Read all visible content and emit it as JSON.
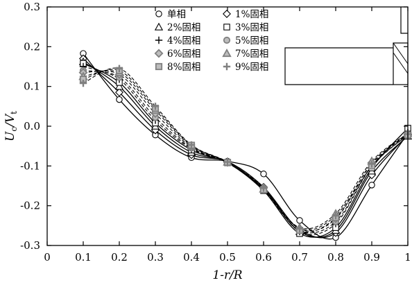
{
  "chart_data": {
    "type": "line",
    "title": "",
    "xlabel": "1-r/R",
    "ylabel": "Uc/Vt",
    "xlim": [
      0,
      1
    ],
    "ylim": [
      -0.3,
      0.3
    ],
    "xticks": [
      "0",
      "0.1",
      "0.2",
      "0.3",
      "0.4",
      "0.5",
      "0.6",
      "0.7",
      "0.8",
      "0.9",
      "1"
    ],
    "yticks": [
      "-0.3",
      "-0.2",
      "-0.1",
      "0.0",
      "0.1",
      "0.2",
      "0.3"
    ],
    "grid": false,
    "legend_position": "top-center",
    "inset": "vessel wall schematic with baffle (top-right)",
    "x": [
      0.1,
      0.2,
      0.3,
      0.4,
      0.5,
      0.6,
      0.7,
      0.8,
      0.9,
      1.0
    ],
    "series": [
      {
        "name": "单相",
        "marker": "circle",
        "line": "solid",
        "values": [
          0.183,
          0.067,
          -0.022,
          -0.079,
          -0.088,
          -0.12,
          -0.237,
          -0.28,
          -0.148,
          -0.018
        ]
      },
      {
        "name": "1%固相",
        "marker": "diamond",
        "line": "solid",
        "values": [
          0.17,
          0.085,
          -0.01,
          -0.072,
          -0.089,
          -0.153,
          -0.26,
          -0.268,
          -0.123,
          -0.022
        ]
      },
      {
        "name": "2%固相",
        "marker": "triangle",
        "line": "solid",
        "values": [
          0.162,
          0.1,
          0.0,
          -0.066,
          -0.09,
          -0.158,
          -0.265,
          -0.262,
          -0.113,
          -0.025
        ]
      },
      {
        "name": "3%固相",
        "marker": "square",
        "line": "solid",
        "values": [
          0.158,
          0.11,
          0.008,
          -0.06,
          -0.092,
          -0.162,
          -0.27,
          -0.255,
          -0.105,
          -0.005
        ]
      },
      {
        "name": "4%固相",
        "marker": "plus",
        "line": "dashed",
        "values": [
          0.15,
          0.118,
          0.015,
          -0.057,
          -0.091,
          -0.155,
          -0.265,
          -0.245,
          -0.1,
          -0.016
        ]
      },
      {
        "name": "5%固相",
        "marker": "circle-gray",
        "line": "dashed",
        "values": [
          0.14,
          0.123,
          0.022,
          -0.055,
          -0.09,
          -0.16,
          -0.262,
          -0.24,
          -0.1,
          -0.022
        ]
      },
      {
        "name": "6%固相",
        "marker": "diamond-gray",
        "line": "dashed",
        "values": [
          0.135,
          0.13,
          0.032,
          -0.053,
          -0.091,
          -0.155,
          -0.258,
          -0.233,
          -0.092,
          -0.02
        ]
      },
      {
        "name": "7%固相",
        "marker": "triangle-gray",
        "line": "dashed",
        "values": [
          0.125,
          0.135,
          0.04,
          -0.05,
          -0.09,
          -0.158,
          -0.255,
          -0.22,
          -0.088,
          -0.018
        ]
      },
      {
        "name": "8%固相",
        "marker": "square-gray",
        "line": "dashed",
        "values": [
          0.118,
          0.14,
          0.045,
          -0.048,
          -0.091,
          -0.16,
          -0.262,
          -0.23,
          -0.1,
          -0.022
        ]
      },
      {
        "name": "9%固相",
        "marker": "plus-gray",
        "line": "dashed",
        "values": [
          0.108,
          0.145,
          0.05,
          -0.047,
          -0.09,
          -0.156,
          -0.258,
          -0.225,
          -0.095,
          -0.02
        ]
      }
    ]
  }
}
